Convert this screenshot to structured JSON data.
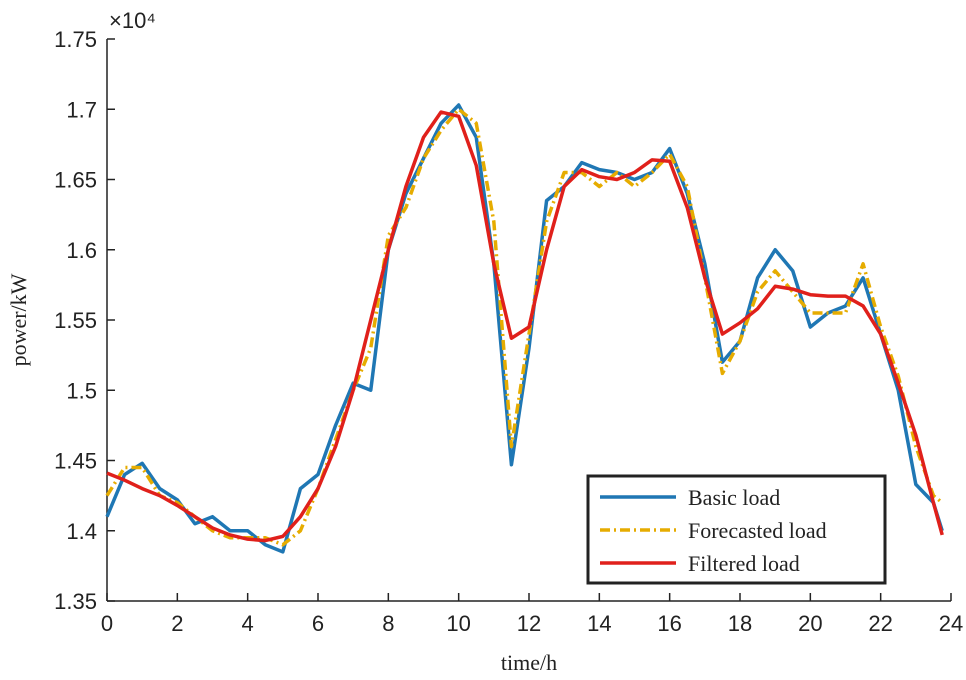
{
  "chart_data": {
    "type": "line",
    "y_multiplier": "×10⁴",
    "xlabel": "time/h",
    "ylabel": "power/kW",
    "x": [
      0,
      0.5,
      1,
      1.5,
      2,
      2.5,
      3,
      3.5,
      4,
      4.5,
      5,
      5.5,
      6,
      6.5,
      7,
      7.5,
      8,
      8.5,
      9,
      9.5,
      10,
      10.5,
      11,
      11.5,
      12,
      12.5,
      13,
      13.5,
      14,
      14.5,
      15,
      15.5,
      16,
      16.5,
      17,
      17.5,
      18,
      18.5,
      19,
      19.5,
      20,
      20.5,
      21,
      21.5,
      22,
      22.5,
      23,
      23.5,
      23.75
    ],
    "series": [
      {
        "name": "Basic load",
        "color": "#1f77b4",
        "dash": "solid",
        "values": [
          1.41,
          1.44,
          1.448,
          1.43,
          1.422,
          1.405,
          1.41,
          1.4,
          1.4,
          1.39,
          1.385,
          1.43,
          1.44,
          1.475,
          1.505,
          1.5,
          1.6,
          1.64,
          1.665,
          1.69,
          1.703,
          1.68,
          1.59,
          1.447,
          1.53,
          1.635,
          1.645,
          1.662,
          1.657,
          1.655,
          1.65,
          1.655,
          1.672,
          1.64,
          1.59,
          1.52,
          1.535,
          1.58,
          1.6,
          1.585,
          1.545,
          1.555,
          1.56,
          1.58,
          1.54,
          1.5,
          1.433,
          1.42,
          1.4
        ]
      },
      {
        "name": "Forecasted load",
        "color": "#e6ac00",
        "dash": "dashdot",
        "values": [
          1.425,
          1.445,
          1.445,
          1.425,
          1.42,
          1.41,
          1.4,
          1.395,
          1.395,
          1.395,
          1.39,
          1.4,
          1.43,
          1.465,
          1.5,
          1.53,
          1.61,
          1.63,
          1.665,
          1.685,
          1.7,
          1.69,
          1.62,
          1.46,
          1.54,
          1.62,
          1.655,
          1.655,
          1.645,
          1.655,
          1.645,
          1.655,
          1.668,
          1.645,
          1.58,
          1.512,
          1.535,
          1.57,
          1.585,
          1.57,
          1.555,
          1.555,
          1.555,
          1.59,
          1.545,
          1.51,
          1.46,
          1.425,
          1.42
        ]
      },
      {
        "name": "Filtered load",
        "color": "#e0201b",
        "dash": "solid",
        "values": [
          1.441,
          1.436,
          1.43,
          1.425,
          1.418,
          1.41,
          1.402,
          1.397,
          1.394,
          1.393,
          1.396,
          1.41,
          1.43,
          1.46,
          1.5,
          1.55,
          1.6,
          1.645,
          1.68,
          1.698,
          1.695,
          1.66,
          1.59,
          1.537,
          1.545,
          1.6,
          1.645,
          1.657,
          1.652,
          1.65,
          1.655,
          1.664,
          1.663,
          1.63,
          1.58,
          1.54,
          1.548,
          1.558,
          1.574,
          1.572,
          1.568,
          1.567,
          1.567,
          1.56,
          1.54,
          1.505,
          1.468,
          1.42,
          1.397
        ]
      }
    ],
    "xlim": [
      0,
      24
    ],
    "xticks": [
      0,
      2,
      4,
      6,
      8,
      10,
      12,
      14,
      16,
      18,
      20,
      22,
      24
    ],
    "ylim": [
      1.35,
      1.75
    ],
    "yticks": [
      1.35,
      1.4,
      1.45,
      1.5,
      1.55,
      1.6,
      1.65,
      1.7,
      1.75
    ],
    "grid": false,
    "legend": "lower right"
  }
}
